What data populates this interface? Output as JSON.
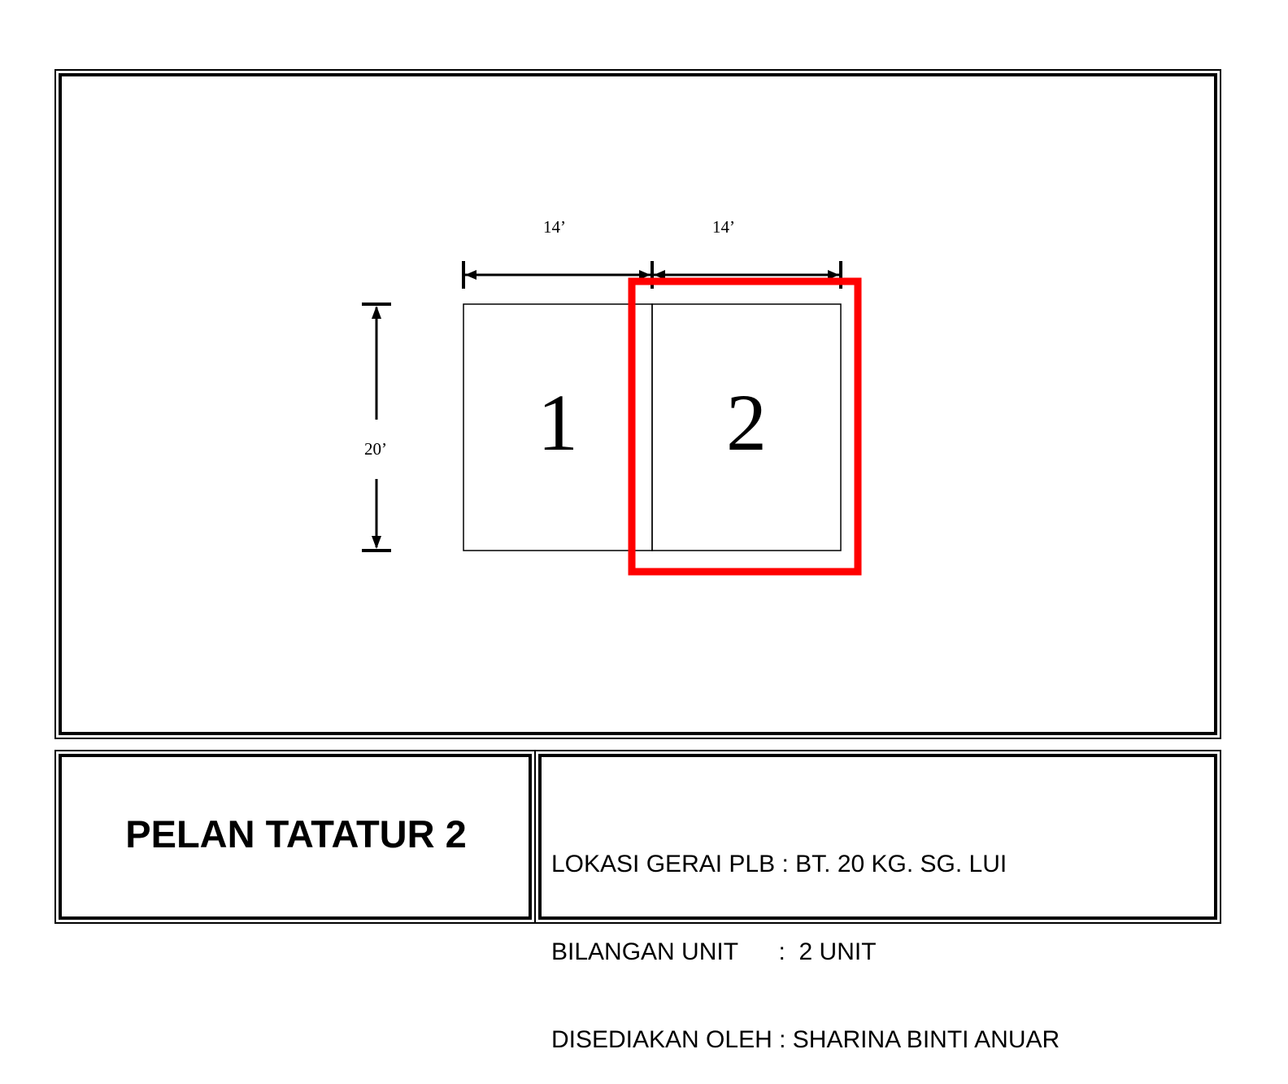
{
  "diagram": {
    "dimensions": {
      "unit1_width": "14’",
      "unit2_width": "14’",
      "depth": "20’"
    },
    "units": [
      {
        "label": "1"
      },
      {
        "label": "2",
        "highlighted": true
      }
    ],
    "highlight_color": "#ff0000"
  },
  "title_block": {
    "title": "PELAN TATATUR 2",
    "info": [
      {
        "label": "LOKASI GERAI PLB",
        "separator": " : ",
        "value": "BT. 20 KG. SG. LUI"
      },
      {
        "label": "BILANGAN UNIT",
        "separator": "      :  ",
        "value": "2 UNIT"
      },
      {
        "label": "DISEDIAKAN OLEH",
        "separator": " : ",
        "value": "SHARINA BINTI ANUAR"
      }
    ]
  }
}
